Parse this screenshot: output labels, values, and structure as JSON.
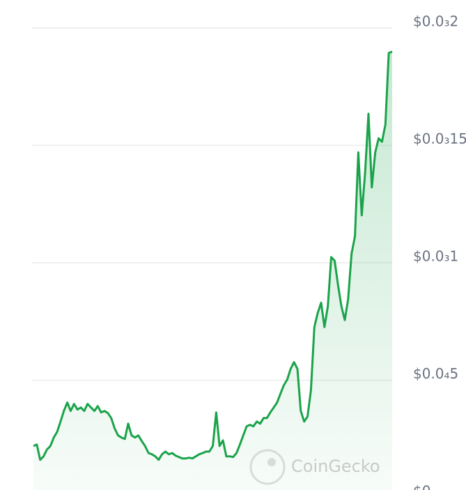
{
  "chart_data": {
    "type": "line",
    "watermark": "CoinGecko",
    "series": [
      {
        "color": "#1aa34a",
        "values": [
          2.2e-05,
          2.26e-05,
          1.61e-05,
          1.76e-05,
          2.05e-05,
          2.2e-05,
          2.56e-05,
          2.8e-05,
          3.24e-05,
          3.69e-05,
          4.05e-05,
          3.69e-05,
          3.99e-05,
          3.75e-05,
          3.84e-05,
          3.69e-05,
          3.99e-05,
          3.84e-05,
          3.69e-05,
          3.9e-05,
          3.63e-05,
          3.69e-05,
          3.6e-05,
          3.39e-05,
          2.95e-05,
          2.65e-05,
          2.56e-05,
          2.5e-05,
          3.15e-05,
          2.65e-05,
          2.56e-05,
          2.65e-05,
          2.41e-05,
          2.2e-05,
          1.9e-05,
          1.85e-05,
          1.76e-05,
          1.61e-05,
          1.85e-05,
          1.96e-05,
          1.85e-05,
          1.9e-05,
          1.79e-05,
          1.73e-05,
          1.67e-05,
          1.67e-05,
          1.7e-05,
          1.67e-05,
          1.76e-05,
          1.85e-05,
          1.9e-05,
          1.96e-05,
          1.96e-05,
          2.2e-05,
          3.63e-05,
          2.2e-05,
          2.44e-05,
          1.76e-05,
          1.76e-05,
          1.73e-05,
          1.9e-05,
          2.26e-05,
          2.65e-05,
          3.04e-05,
          3.1e-05,
          3.04e-05,
          3.24e-05,
          3.15e-05,
          3.39e-05,
          3.39e-05,
          3.63e-05,
          3.84e-05,
          4.05e-05,
          4.43e-05,
          4.79e-05,
          5.03e-05,
          5.48e-05,
          5.77e-05,
          5.48e-05,
          3.69e-05,
          3.24e-05,
          3.45e-05,
          4.58e-05,
          7.26e-05,
          7.86e-05,
          8.3e-05,
          7.26e-05,
          8.15e-05,
          0.0001024,
          0.0001009,
          9.05e-05,
          8.15e-05,
          7.56e-05,
          8.45e-05,
          0.0001039,
          0.0001113,
          0.000147,
          0.0001202,
          0.0001381,
          0.0001634,
          0.0001321,
          0.000147,
          0.000153,
          0.0001515,
          0.0001589,
          0.0001893,
          0.0001899
        ]
      }
    ],
    "ylim": [
      0,
      0.0002
    ],
    "yticks": [
      {
        "value": 0,
        "label": "$0"
      },
      {
        "value": 5e-05,
        "label": "$0.0₄5"
      },
      {
        "value": 0.0001,
        "label": "$0.0₃1"
      },
      {
        "value": 0.00015,
        "label": "$0.0₃15"
      },
      {
        "value": 0.0002,
        "label": "$0.0₃2"
      }
    ],
    "grid": true
  }
}
